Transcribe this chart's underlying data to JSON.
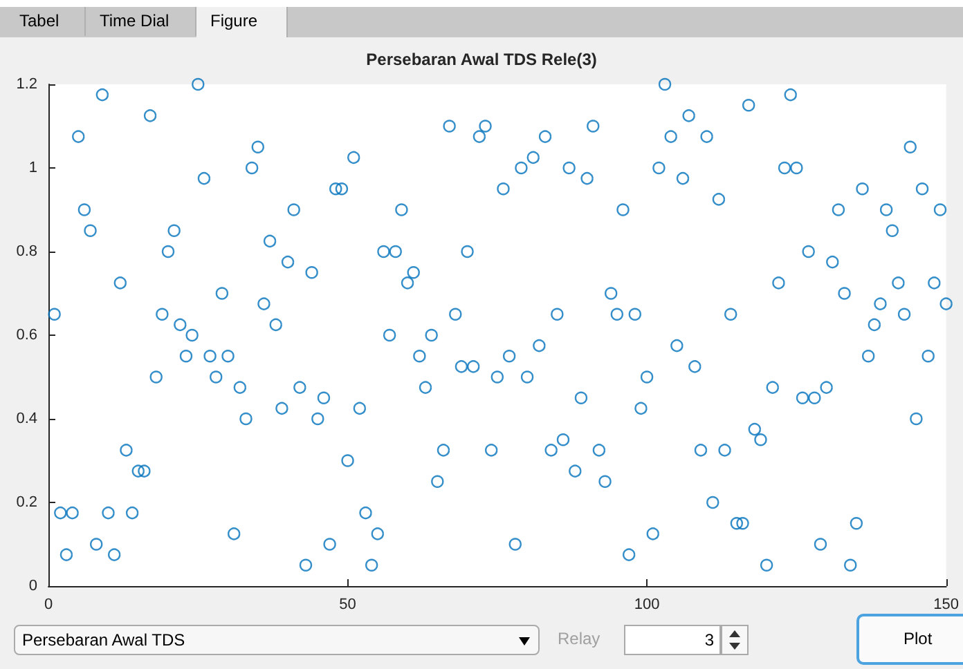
{
  "chart_data": {
    "type": "scatter",
    "title": "Persebaran Awal TDS Rele(3)",
    "x": [
      1,
      2,
      3,
      4,
      5,
      6,
      7,
      8,
      9,
      10,
      11,
      12,
      13,
      14,
      15,
      16,
      17,
      18,
      19,
      20,
      21,
      22,
      23,
      24,
      25,
      26,
      27,
      28,
      29,
      30,
      31,
      32,
      33,
      34,
      35,
      36,
      37,
      38,
      39,
      40,
      41,
      42,
      43,
      44,
      45,
      46,
      47,
      48,
      49,
      50,
      51,
      52,
      53,
      54,
      55,
      56,
      57,
      58,
      59,
      60,
      61,
      62,
      63,
      64,
      65,
      66,
      67,
      68,
      69,
      70,
      71,
      72,
      73,
      74,
      75,
      76,
      77,
      78,
      79,
      80,
      81,
      82,
      83,
      84,
      85,
      86,
      87,
      88,
      89,
      90,
      91,
      92,
      93,
      94,
      95,
      96,
      97,
      98,
      99,
      100,
      101,
      102,
      103,
      104,
      105,
      106,
      107,
      108,
      109,
      110,
      111,
      112,
      113,
      114,
      115,
      116,
      117,
      118,
      119,
      120,
      121,
      122,
      123,
      124,
      125,
      126,
      127,
      128,
      129,
      130,
      131,
      132,
      133,
      134,
      135,
      136,
      137,
      138,
      139,
      140,
      141,
      142,
      143,
      144,
      145,
      146,
      147,
      148,
      149,
      150
    ],
    "series": [
      {
        "color": "#0072bd",
        "values": [
          0.65,
          0.175,
          0.075,
          0.175,
          1.075,
          0.9,
          0.85,
          0.1,
          1.175,
          0.175,
          0.075,
          0.725,
          0.325,
          0.175,
          0.275,
          0.275,
          1.125,
          0.5,
          0.65,
          0.8,
          0.85,
          0.625,
          0.55,
          0.6,
          1.2,
          0.975,
          0.55,
          0.5,
          0.7,
          0.55,
          0.125,
          0.475,
          0.4,
          1.0,
          1.05,
          0.675,
          0.825,
          0.625,
          0.425,
          0.775,
          0.9,
          0.475,
          0.05,
          0.75,
          0.4,
          0.45,
          0.1,
          0.95,
          0.95,
          0.3,
          1.025,
          0.425,
          0.175,
          0.05,
          0.125,
          0.8,
          0.6,
          0.8,
          0.9,
          0.725,
          0.75,
          0.55,
          0.475,
          0.6,
          0.25,
          0.325,
          1.1,
          0.65,
          0.525,
          0.8,
          0.525,
          1.075,
          1.1,
          0.325,
          0.5,
          0.95,
          0.55,
          0.1,
          1.0,
          0.5,
          1.025,
          0.575,
          1.075,
          0.325,
          0.65,
          0.35,
          1.0,
          0.275,
          0.45,
          0.975,
          1.1,
          0.325,
          0.25,
          0.7,
          0.65,
          0.9,
          0.075,
          0.65,
          0.425,
          0.5,
          0.125,
          1.0,
          1.2,
          1.075,
          0.575,
          0.975,
          1.125,
          0.525,
          0.325,
          1.075,
          0.2,
          0.925,
          0.325,
          0.65,
          0.15,
          0.15,
          1.15,
          0.375,
          0.35,
          0.05,
          0.475,
          0.725,
          1.0,
          1.175,
          1.0,
          0.45,
          0.8,
          0.45,
          0.1,
          0.475,
          0.775,
          0.9,
          0.7,
          0.05,
          0.15,
          0.95,
          0.55,
          0.625,
          0.675,
          0.9,
          0.85,
          0.725,
          0.65,
          1.05,
          0.4,
          0.95,
          0.55,
          0.725,
          0.9,
          0.675
        ]
      }
    ],
    "xlim": [
      0,
      150
    ],
    "xticks": [
      0,
      50,
      100,
      150
    ],
    "ylim": [
      0,
      1.2
    ],
    "yticks": [
      0,
      0.2,
      0.4,
      0.6,
      0.8,
      1,
      1.2
    ],
    "marker": "circle",
    "annotations": [
      "Tabel",
      "Time Dial",
      "Figure",
      "Persebaran Awal TDS",
      "Relay",
      "3",
      "Plot"
    ]
  }
}
